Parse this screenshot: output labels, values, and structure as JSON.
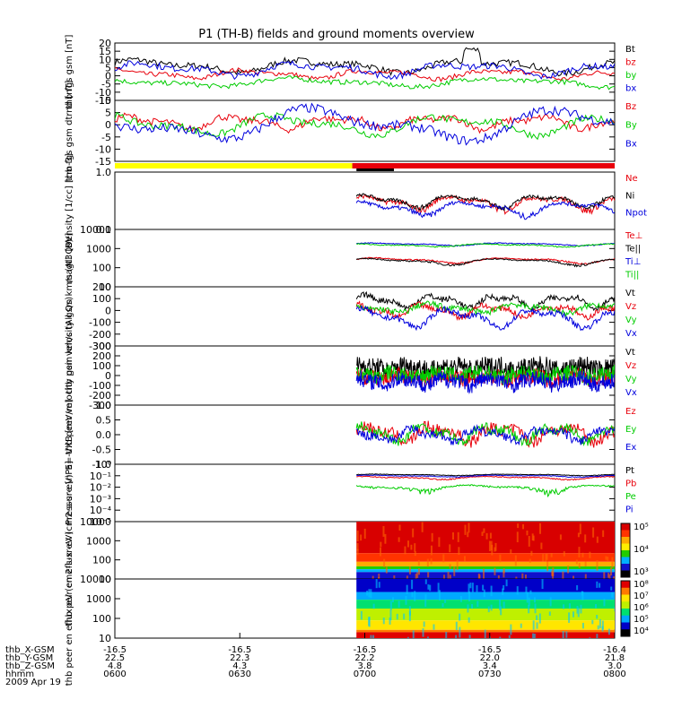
{
  "title": "P1 (TH-B) fields and ground moments overview",
  "colors": {
    "black": "#000000",
    "red": "#e8000b",
    "green": "#00cc00",
    "blue": "#0000dd",
    "yellow": "#ffff00"
  },
  "chart_data": [
    {
      "type": "line",
      "id": "fgs",
      "ylabel": "thb fgs gsm [nT]",
      "ylim": [
        -15,
        20
      ],
      "ticks": [
        "-15",
        "-10",
        "-5",
        "0",
        "5",
        "10",
        "15",
        "20"
      ],
      "series": [
        {
          "name": "Bt",
          "color": "black"
        },
        {
          "name": "bz",
          "color": "red"
        },
        {
          "name": "by",
          "color": "green"
        },
        {
          "name": "bx",
          "color": "blue"
        }
      ]
    },
    {
      "type": "line",
      "id": "dfgs",
      "ylabel": "thb fgs gsm dtrnd [nT]",
      "ylim": [
        -15,
        10
      ],
      "ticks": [
        "-15",
        "-10",
        "-5",
        "0",
        "5",
        "10"
      ],
      "series": [
        {
          "name": "Bz",
          "color": "red"
        },
        {
          "name": "By",
          "color": "green"
        },
        {
          "name": "Bx",
          "color": "blue"
        }
      ]
    },
    {
      "type": "line",
      "id": "density",
      "ylabel": "Density [1/cc] [cm-3]",
      "ylim": [
        0.1,
        1.0
      ],
      "log": true,
      "ticks": [
        "0.1",
        "1.0"
      ],
      "series": [
        {
          "name": "Ne",
          "color": "red"
        },
        {
          "name": "Ni",
          "color": "black"
        },
        {
          "name": "Npot",
          "color": "blue"
        }
      ]
    },
    {
      "type": "line",
      "id": "temp",
      "ylabel": "magt3 [eV]",
      "ylim": [
        10,
        10000
      ],
      "log": true,
      "ticks": [
        "10",
        "100",
        "1000",
        "10000"
      ],
      "series": [
        {
          "name": "Te⊥",
          "color": "red"
        },
        {
          "name": "Te||",
          "color": "black"
        },
        {
          "name": "Ti⊥",
          "color": "blue"
        },
        {
          "name": "Ti||",
          "color": "green"
        }
      ]
    },
    {
      "type": "line",
      "id": "vi",
      "ylabel": "thb peir velocity gsm km/s (All Qs)",
      "ylim": [
        -300,
        200
      ],
      "ticks": [
        "-300",
        "-200",
        "-100",
        "0",
        "100",
        "200"
      ],
      "series": [
        {
          "name": "Vt",
          "color": "black"
        },
        {
          "name": "Vz",
          "color": "red"
        },
        {
          "name": "Vy",
          "color": "green"
        },
        {
          "name": "Vx",
          "color": "blue"
        }
      ]
    },
    {
      "type": "line",
      "id": "ve",
      "ylabel": "thb peer velocity gsm km/s (All Qs)",
      "ylim": [
        -300,
        300
      ],
      "ticks": [
        "-300",
        "-200",
        "-100",
        "0",
        "100",
        "200",
        "300"
      ],
      "series": [
        {
          "name": "Vt",
          "color": "black"
        },
        {
          "name": "Vz",
          "color": "red"
        },
        {
          "name": "Vy",
          "color": "green"
        },
        {
          "name": "Vx",
          "color": "blue"
        }
      ]
    },
    {
      "type": "line",
      "id": "efield",
      "ylabel": "E=-VXB [mV/m]",
      "ylim": [
        -1.0,
        1.0
      ],
      "ticks": [
        "-1.0",
        "-0.5",
        "0.0",
        "0.5",
        "1.0"
      ],
      "series": [
        {
          "name": "Ez",
          "color": "red"
        },
        {
          "name": "Ey",
          "color": "green"
        },
        {
          "name": "Ex",
          "color": "blue"
        }
      ]
    },
    {
      "type": "line",
      "id": "pressure",
      "ylabel": "Pressure [nPa]",
      "ylim": [
        1e-06,
        1
      ],
      "log": true,
      "ticks": [
        "10⁻⁵",
        "10⁻⁴",
        "10⁻³",
        "10⁻²",
        "10⁻¹",
        "10⁰"
      ],
      "series": [
        {
          "name": "Pt",
          "color": "black"
        },
        {
          "name": "Pb",
          "color": "red"
        },
        {
          "name": "Pe",
          "color": "green"
        },
        {
          "name": "Pi",
          "color": "blue"
        }
      ]
    },
    {
      "type": "heatmap",
      "id": "ion_spec",
      "ylabel": "thb peir en eflux eV (cm2-s-sr-eV)",
      "ylim": [
        10,
        10000
      ],
      "log": true,
      "ticks": [
        "10",
        "100",
        "1000",
        "10000"
      ],
      "colorbar_ticks": [
        "10³",
        "10⁴",
        "10⁵"
      ]
    },
    {
      "type": "heatmap",
      "id": "ele_spec",
      "ylabel": "thb peer en eflux eV (cm2-s-sr-eV)",
      "ylim": [
        10,
        10000
      ],
      "log": true,
      "ticks": [
        "10",
        "100",
        "1000",
        "10000"
      ],
      "colorbar_ticks": [
        "10⁴",
        "10⁵",
        "10⁶",
        "10⁷",
        "10⁸"
      ]
    }
  ],
  "mode_bar": [
    {
      "from": "06:00",
      "to": "06:57",
      "color": "yellow"
    },
    {
      "from": "06:57",
      "to": "08:00",
      "color": "red"
    }
  ],
  "data_start": "06:58",
  "xaxis": {
    "row_labels": [
      "thb_X-GSM",
      "thb_Y-GSM",
      "thb_Z-GSM",
      "hhmm",
      "2009 Apr 19"
    ],
    "columns": [
      [
        "-16.5",
        "22.5",
        "4.8",
        "0600"
      ],
      [
        "-16.5",
        "22.3",
        "4.3",
        "0630"
      ],
      [
        "-16.5",
        "22.2",
        "3.8",
        "0700"
      ],
      [
        "-16.5",
        "22.0",
        "3.4",
        "0730"
      ],
      [
        "-16.4",
        "21.8",
        "3.0",
        "0800"
      ]
    ]
  }
}
